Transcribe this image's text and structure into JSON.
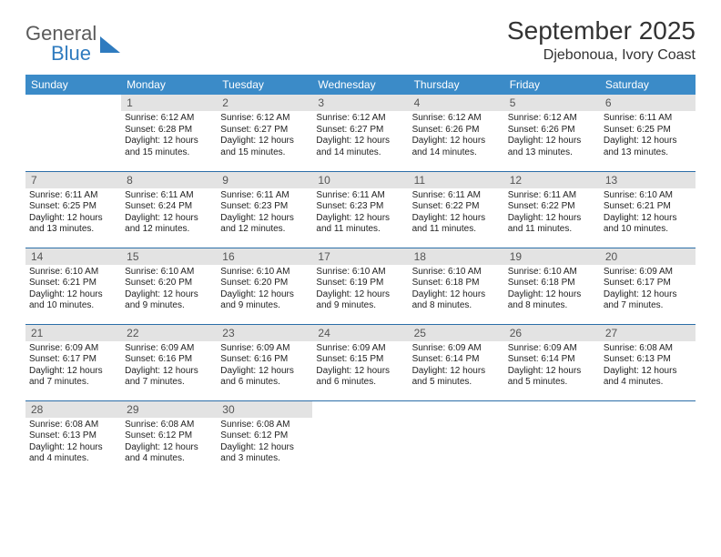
{
  "logo": {
    "top": "General",
    "bottom": "Blue"
  },
  "title": "September 2025",
  "location": "Djebonoua, Ivory Coast",
  "colors": {
    "header_bg": "#3b8bc8",
    "header_text": "#ffffff",
    "row_border": "#2b6ea8",
    "daynum_bg": "#e3e3e3",
    "daynum_text": "#555555",
    "body_text": "#222222",
    "logo_gray": "#5b5b5b",
    "logo_blue": "#2f7bbf"
  },
  "weekdays": [
    "Sunday",
    "Monday",
    "Tuesday",
    "Wednesday",
    "Thursday",
    "Friday",
    "Saturday"
  ],
  "grid": {
    "start_offset": 1,
    "days": [
      {
        "n": 1,
        "sunrise": "6:12 AM",
        "sunset": "6:28 PM",
        "daylight": "12 hours and 15 minutes."
      },
      {
        "n": 2,
        "sunrise": "6:12 AM",
        "sunset": "6:27 PM",
        "daylight": "12 hours and 15 minutes."
      },
      {
        "n": 3,
        "sunrise": "6:12 AM",
        "sunset": "6:27 PM",
        "daylight": "12 hours and 14 minutes."
      },
      {
        "n": 4,
        "sunrise": "6:12 AM",
        "sunset": "6:26 PM",
        "daylight": "12 hours and 14 minutes."
      },
      {
        "n": 5,
        "sunrise": "6:12 AM",
        "sunset": "6:26 PM",
        "daylight": "12 hours and 13 minutes."
      },
      {
        "n": 6,
        "sunrise": "6:11 AM",
        "sunset": "6:25 PM",
        "daylight": "12 hours and 13 minutes."
      },
      {
        "n": 7,
        "sunrise": "6:11 AM",
        "sunset": "6:25 PM",
        "daylight": "12 hours and 13 minutes."
      },
      {
        "n": 8,
        "sunrise": "6:11 AM",
        "sunset": "6:24 PM",
        "daylight": "12 hours and 12 minutes."
      },
      {
        "n": 9,
        "sunrise": "6:11 AM",
        "sunset": "6:23 PM",
        "daylight": "12 hours and 12 minutes."
      },
      {
        "n": 10,
        "sunrise": "6:11 AM",
        "sunset": "6:23 PM",
        "daylight": "12 hours and 11 minutes."
      },
      {
        "n": 11,
        "sunrise": "6:11 AM",
        "sunset": "6:22 PM",
        "daylight": "12 hours and 11 minutes."
      },
      {
        "n": 12,
        "sunrise": "6:11 AM",
        "sunset": "6:22 PM",
        "daylight": "12 hours and 11 minutes."
      },
      {
        "n": 13,
        "sunrise": "6:10 AM",
        "sunset": "6:21 PM",
        "daylight": "12 hours and 10 minutes."
      },
      {
        "n": 14,
        "sunrise": "6:10 AM",
        "sunset": "6:21 PM",
        "daylight": "12 hours and 10 minutes."
      },
      {
        "n": 15,
        "sunrise": "6:10 AM",
        "sunset": "6:20 PM",
        "daylight": "12 hours and 9 minutes."
      },
      {
        "n": 16,
        "sunrise": "6:10 AM",
        "sunset": "6:20 PM",
        "daylight": "12 hours and 9 minutes."
      },
      {
        "n": 17,
        "sunrise": "6:10 AM",
        "sunset": "6:19 PM",
        "daylight": "12 hours and 9 minutes."
      },
      {
        "n": 18,
        "sunrise": "6:10 AM",
        "sunset": "6:18 PM",
        "daylight": "12 hours and 8 minutes."
      },
      {
        "n": 19,
        "sunrise": "6:10 AM",
        "sunset": "6:18 PM",
        "daylight": "12 hours and 8 minutes."
      },
      {
        "n": 20,
        "sunrise": "6:09 AM",
        "sunset": "6:17 PM",
        "daylight": "12 hours and 7 minutes."
      },
      {
        "n": 21,
        "sunrise": "6:09 AM",
        "sunset": "6:17 PM",
        "daylight": "12 hours and 7 minutes."
      },
      {
        "n": 22,
        "sunrise": "6:09 AM",
        "sunset": "6:16 PM",
        "daylight": "12 hours and 7 minutes."
      },
      {
        "n": 23,
        "sunrise": "6:09 AM",
        "sunset": "6:16 PM",
        "daylight": "12 hours and 6 minutes."
      },
      {
        "n": 24,
        "sunrise": "6:09 AM",
        "sunset": "6:15 PM",
        "daylight": "12 hours and 6 minutes."
      },
      {
        "n": 25,
        "sunrise": "6:09 AM",
        "sunset": "6:14 PM",
        "daylight": "12 hours and 5 minutes."
      },
      {
        "n": 26,
        "sunrise": "6:09 AM",
        "sunset": "6:14 PM",
        "daylight": "12 hours and 5 minutes."
      },
      {
        "n": 27,
        "sunrise": "6:08 AM",
        "sunset": "6:13 PM",
        "daylight": "12 hours and 4 minutes."
      },
      {
        "n": 28,
        "sunrise": "6:08 AM",
        "sunset": "6:13 PM",
        "daylight": "12 hours and 4 minutes."
      },
      {
        "n": 29,
        "sunrise": "6:08 AM",
        "sunset": "6:12 PM",
        "daylight": "12 hours and 4 minutes."
      },
      {
        "n": 30,
        "sunrise": "6:08 AM",
        "sunset": "6:12 PM",
        "daylight": "12 hours and 3 minutes."
      }
    ]
  },
  "labels": {
    "sunrise_prefix": "Sunrise: ",
    "sunset_prefix": "Sunset: ",
    "daylight_prefix": "Daylight: "
  }
}
